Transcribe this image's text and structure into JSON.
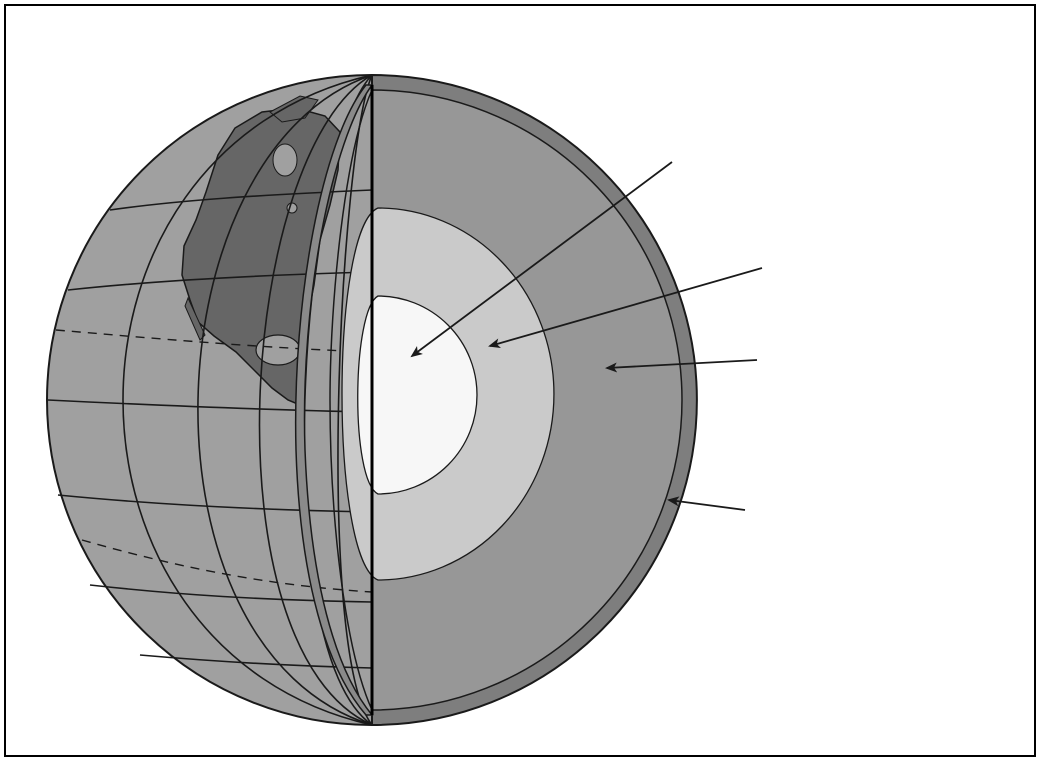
{
  "diagram": {
    "colors": {
      "background": "#ffffff",
      "frame": "#000000",
      "ocean": "#a0a0a0",
      "land": "#666666",
      "grid": "#1a1a1a",
      "crust": "#7e7e7e",
      "mantle": "#979797",
      "outer_core": "#cacaca",
      "inner_core": "#f7f7f7",
      "pointer": "#1a1a1a"
    },
    "layers": [
      {
        "id": "inner-core",
        "label": ""
      },
      {
        "id": "outer-core",
        "label": ""
      },
      {
        "id": "mantle",
        "label": ""
      },
      {
        "id": "crust",
        "label": ""
      }
    ],
    "icons": {
      "pointer": "arrow-icon"
    }
  }
}
